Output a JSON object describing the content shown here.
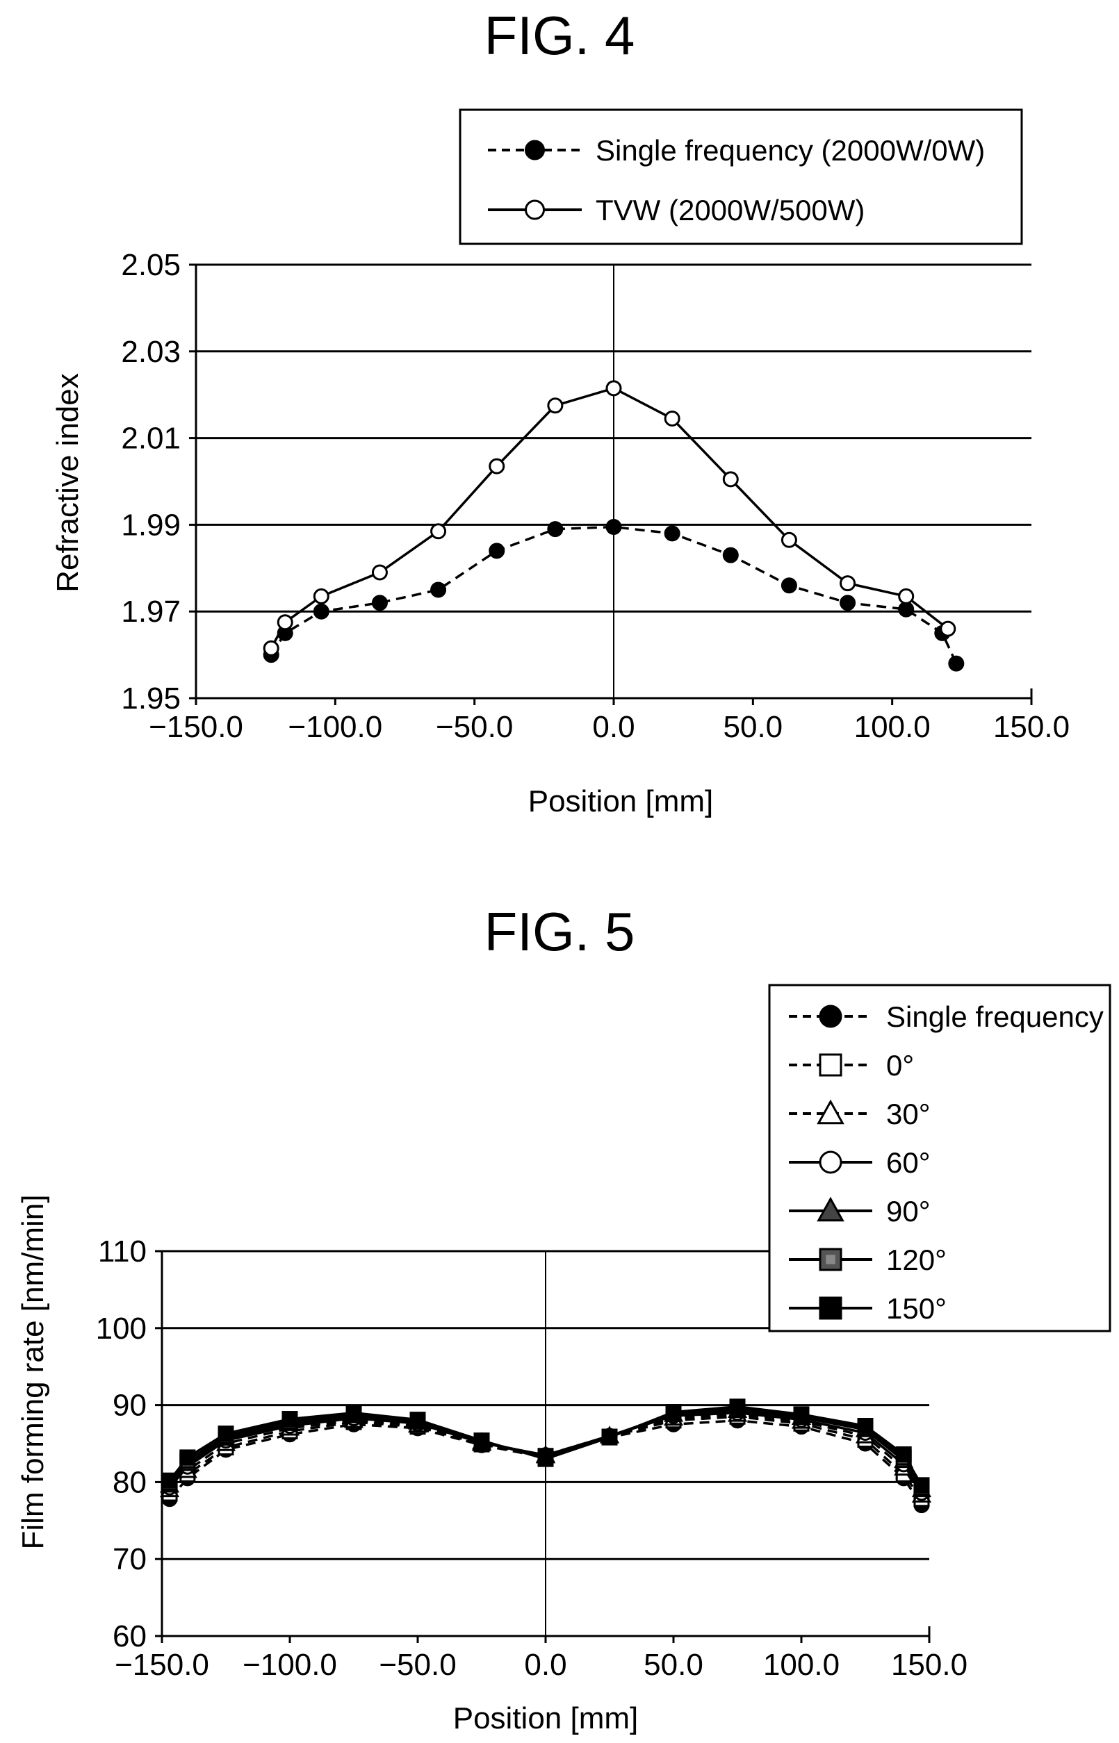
{
  "chart_data": [
    {
      "type": "line",
      "title": "FIG. 4",
      "xlabel": "Position [mm]",
      "ylabel": "Refractive index",
      "xlim": [
        -150,
        150
      ],
      "ylim": [
        1.95,
        2.05
      ],
      "xticks": [
        -150,
        -100,
        -50,
        0,
        50,
        100,
        150
      ],
      "xtick_labels": [
        "−150.0",
        "−100.0",
        "−50.0",
        "0.0",
        "50.0",
        "100.0",
        "150.0"
      ],
      "yticks": [
        1.95,
        1.97,
        1.99,
        2.01,
        2.03,
        2.05
      ],
      "ytick_labels": [
        "1.95",
        "1.97",
        "1.99",
        "2.01",
        "2.03",
        "2.05"
      ],
      "grid": "horizontal",
      "legend_position": "top-right",
      "series": [
        {
          "name": "Single frequency (2000W/0W)",
          "marker": "filled-circle",
          "dash": "dashed",
          "x": [
            -123,
            -118,
            -105,
            -84,
            -63,
            -42,
            -21,
            0,
            21,
            42,
            63,
            84,
            105,
            118,
            123
          ],
          "y": [
            1.96,
            1.965,
            1.97,
            1.972,
            1.975,
            1.984,
            1.989,
            1.9895,
            1.988,
            1.983,
            1.976,
            1.972,
            1.9705,
            1.965,
            1.958
          ]
        },
        {
          "name": "TVW (2000W/500W)",
          "marker": "open-circle",
          "dash": "solid",
          "x": [
            -123,
            -118,
            -105,
            -84,
            -63,
            -42,
            -21,
            0,
            21,
            42,
            63,
            84,
            105,
            120
          ],
          "y": [
            1.9615,
            1.9675,
            1.9735,
            1.979,
            1.9885,
            2.0035,
            2.0175,
            2.0215,
            2.0145,
            2.0005,
            1.9865,
            1.9765,
            1.9735,
            1.966
          ]
        }
      ]
    },
    {
      "type": "line",
      "title": "FIG. 5",
      "xlabel": "Position [mm]",
      "ylabel": "Film forming rate [nm/min]",
      "xlim": [
        -150,
        150
      ],
      "ylim": [
        60,
        110
      ],
      "xticks": [
        -150,
        -100,
        -50,
        0,
        50,
        100,
        150
      ],
      "xtick_labels": [
        "−150.0",
        "−100.0",
        "−50.0",
        "0.0",
        "50.0",
        "100.0",
        "150.0"
      ],
      "yticks": [
        60,
        70,
        80,
        90,
        100,
        110
      ],
      "ytick_labels": [
        "60",
        "70",
        "80",
        "90",
        "100",
        "110"
      ],
      "grid": "horizontal",
      "legend_position": "top-right",
      "x": [
        -147,
        -140,
        -125,
        -100,
        -75,
        -50,
        -25,
        0,
        25,
        50,
        75,
        100,
        125,
        140,
        147
      ],
      "series": [
        {
          "name": "Single frequency",
          "marker": "filled-circle",
          "dash": "dashed",
          "y": [
            77.8,
            80.5,
            84.2,
            86.2,
            87.5,
            87.0,
            84.8,
            83.2,
            85.8,
            87.5,
            88.0,
            87.2,
            85.0,
            80.5,
            77.0
          ]
        },
        {
          "name": "0°",
          "marker": "open-square",
          "dash": "dashed",
          "y": [
            78.5,
            81.0,
            84.5,
            86.6,
            87.8,
            87.2,
            84.9,
            83.4,
            85.9,
            88.0,
            88.5,
            87.6,
            85.5,
            81.0,
            77.8
          ]
        },
        {
          "name": "30°",
          "marker": "open-triangle",
          "dash": "dashed",
          "y": [
            79.0,
            81.5,
            85.0,
            87.0,
            88.0,
            87.4,
            85.0,
            83.5,
            86.0,
            88.3,
            88.8,
            87.9,
            86.0,
            81.8,
            78.3
          ]
        },
        {
          "name": "60°",
          "marker": "open-circle",
          "dash": "solid",
          "y": [
            79.3,
            82.0,
            85.4,
            87.3,
            88.3,
            87.6,
            85.1,
            83.5,
            86.0,
            88.6,
            89.0,
            88.1,
            86.4,
            82.3,
            78.6
          ]
        },
        {
          "name": "90°",
          "marker": "filled-triangle",
          "dash": "solid",
          "y": [
            79.6,
            82.4,
            85.7,
            87.6,
            88.6,
            87.8,
            85.2,
            83.4,
            86.0,
            88.8,
            89.3,
            88.4,
            86.8,
            82.8,
            79.0
          ]
        },
        {
          "name": "120°",
          "marker": "hatched-square",
          "dash": "solid",
          "y": [
            79.9,
            82.8,
            86.0,
            87.9,
            88.8,
            88.0,
            85.3,
            83.2,
            85.9,
            89.0,
            89.6,
            88.6,
            87.1,
            83.2,
            79.3
          ]
        },
        {
          "name": "150°",
          "marker": "filled-square",
          "dash": "solid",
          "y": [
            80.2,
            83.2,
            86.3,
            88.2,
            89.0,
            88.1,
            85.4,
            83.0,
            85.8,
            89.1,
            89.8,
            88.8,
            87.3,
            83.6,
            79.6
          ]
        }
      ]
    }
  ]
}
